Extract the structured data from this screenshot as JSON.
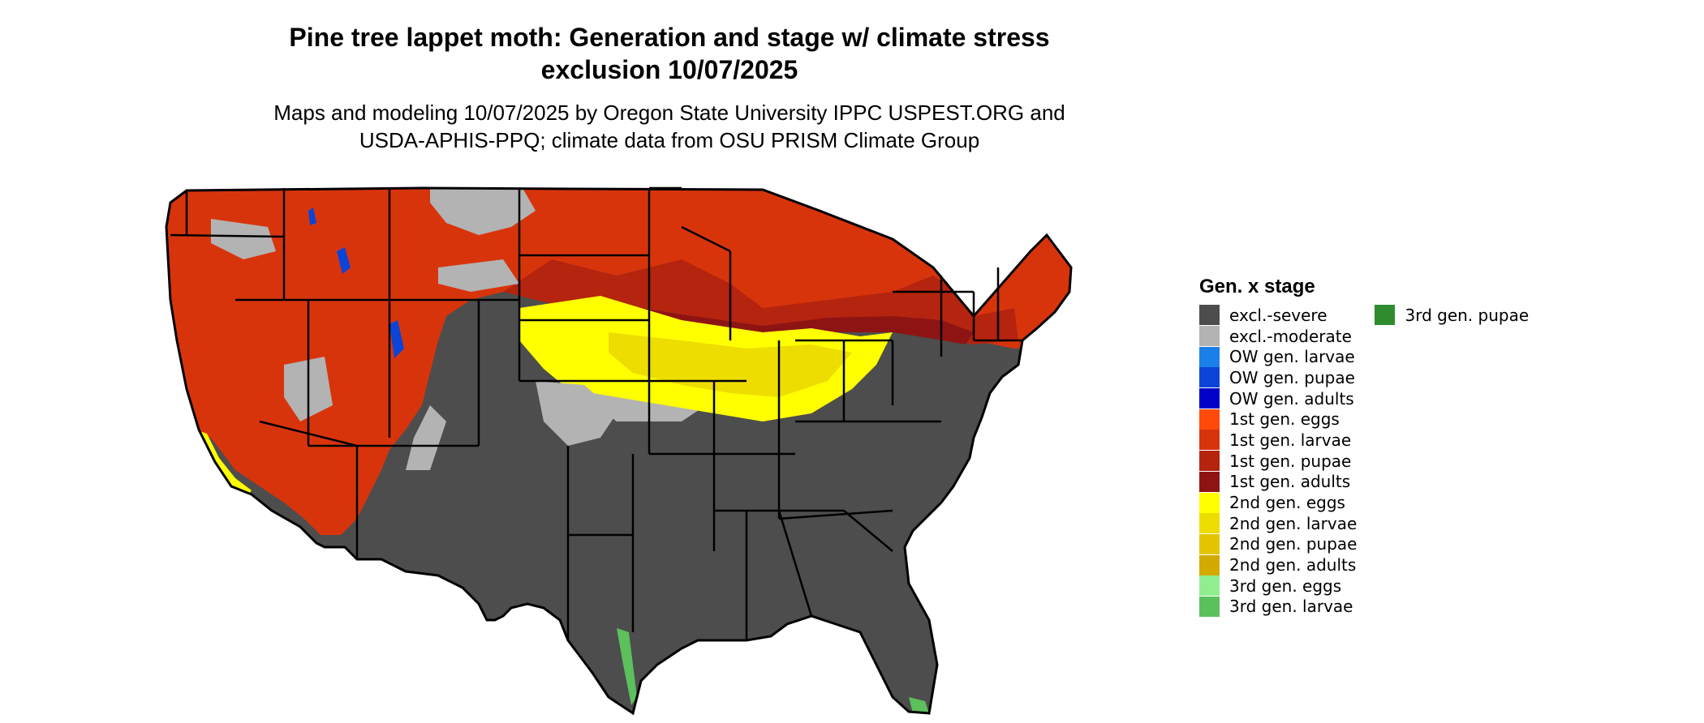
{
  "header": {
    "title_line1": "Pine tree lappet moth: Generation and stage w/ climate stress",
    "title_line2": "exclusion 10/07/2025",
    "subtitle_line1": "Maps and modeling 10/07/2025 by Oregon State University IPPC USPEST.ORG and",
    "subtitle_line2": "USDA-APHIS-PPQ; climate data from OSU PRISM Climate Group"
  },
  "legend": {
    "title": "Gen. x stage",
    "columns": [
      [
        {
          "label": "excl.-severe",
          "color": "#4d4d4d"
        },
        {
          "label": "excl.-moderate",
          "color": "#b3b3b3"
        },
        {
          "label": "OW gen. larvae",
          "color": "#1a7fe8"
        },
        {
          "label": "OW gen. pupae",
          "color": "#0b44d6"
        },
        {
          "label": "OW gen. adults",
          "color": "#0000c8"
        },
        {
          "label": "1st gen. eggs",
          "color": "#ff4a0a"
        },
        {
          "label": "1st gen. larvae",
          "color": "#d8340c"
        },
        {
          "label": "1st gen. pupae",
          "color": "#b4240f"
        },
        {
          "label": "1st gen. adults",
          "color": "#8e1414"
        },
        {
          "label": "2nd gen. eggs",
          "color": "#ffff00"
        },
        {
          "label": "2nd gen. larvae",
          "color": "#eedd00"
        },
        {
          "label": "2nd gen. pupae",
          "color": "#e2c500"
        },
        {
          "label": "2nd gen. adults",
          "color": "#d2aa00"
        },
        {
          "label": "3rd gen. eggs",
          "color": "#90ee90"
        },
        {
          "label": "3rd gen. larvae",
          "color": "#5cc05c"
        }
      ],
      [
        {
          "label": "3rd gen. pupae",
          "color": "#2e8b2e"
        }
      ]
    ]
  },
  "map": {
    "colors": {
      "severe": "#4d4d4d",
      "moderate": "#b3b3b3",
      "gen1_larvae": "#d8340c",
      "gen1_pupae": "#b4240f",
      "gen1_adults": "#8e1414",
      "gen2_eggs": "#ffff00",
      "gen2_larvae": "#eedd00",
      "ow_pupae": "#0b44d6",
      "gen3_larvae": "#5cc05c",
      "border": "#000000"
    }
  }
}
